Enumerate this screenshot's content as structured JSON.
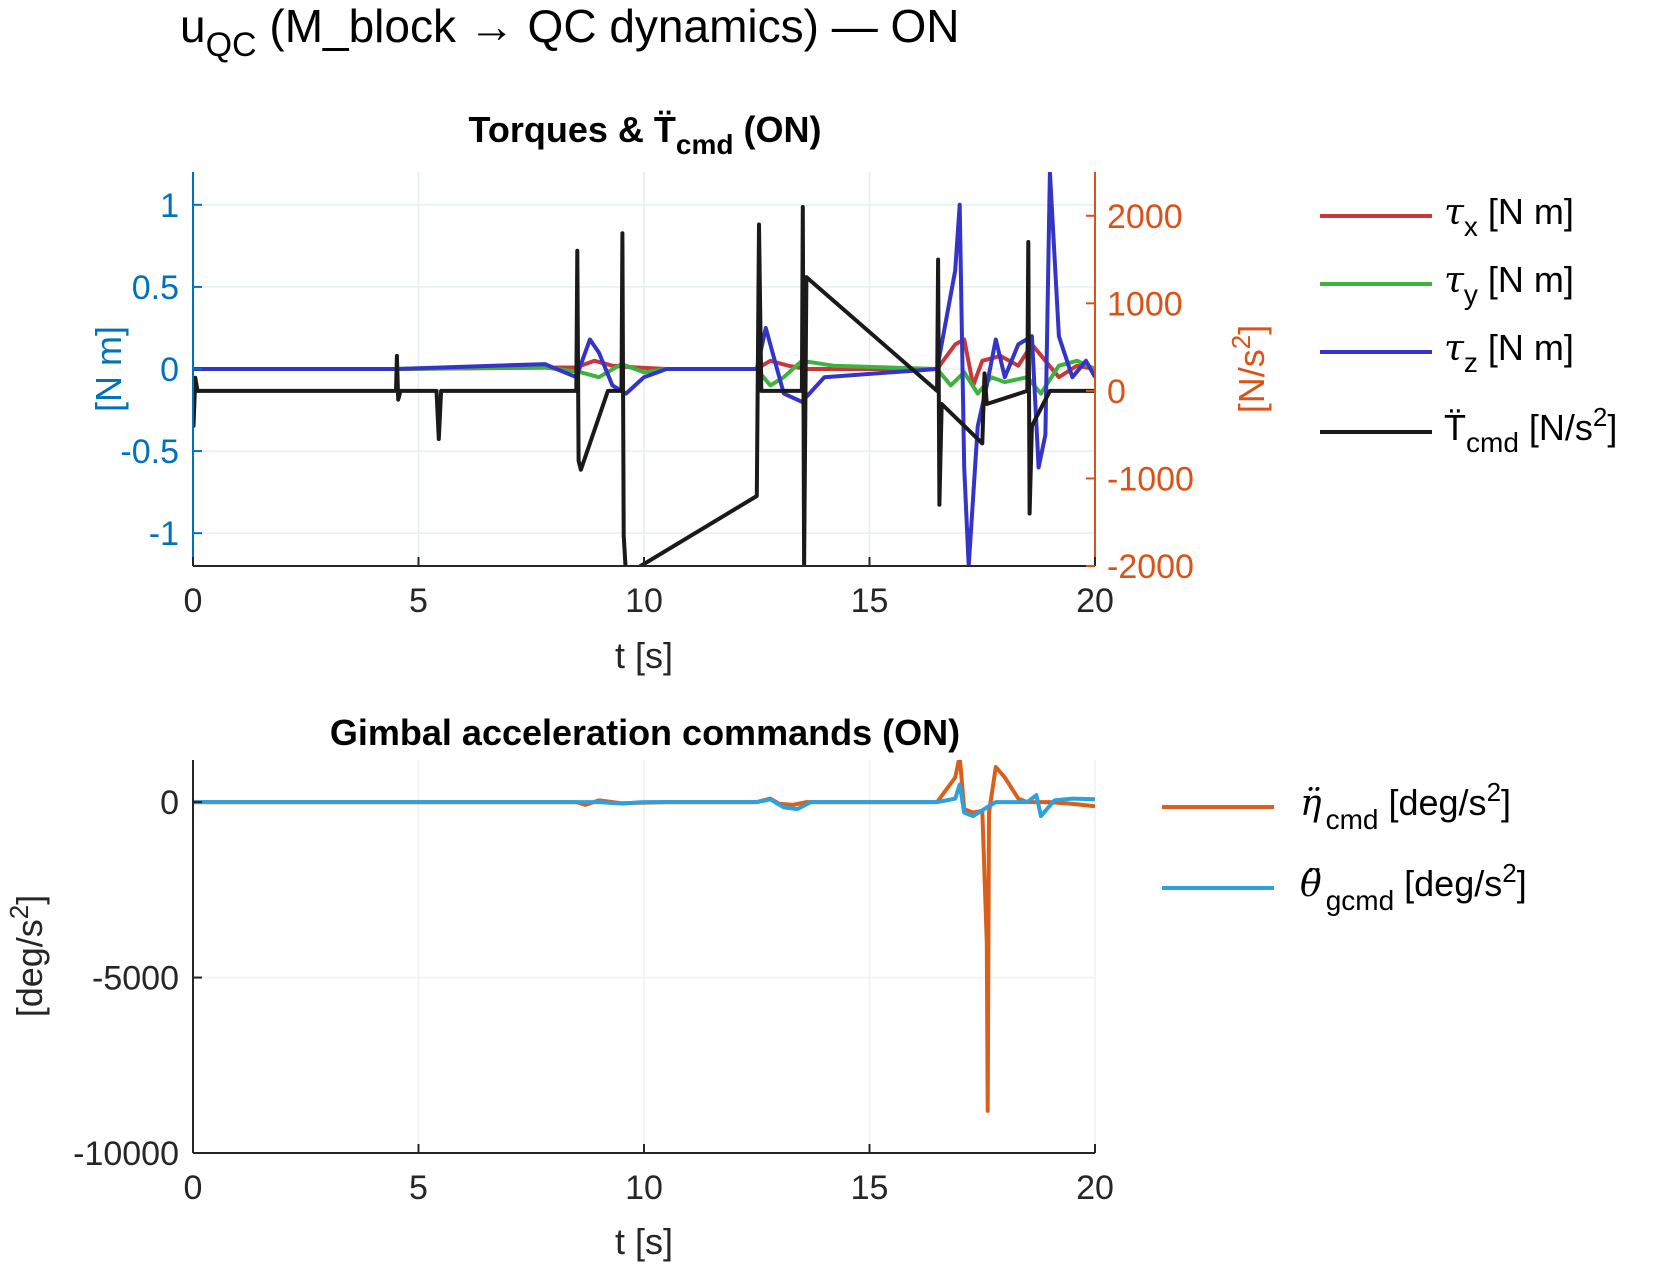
{
  "figure": {
    "suptitle": {
      "base": "u",
      "sub": "QC",
      "rest": " (M_block → QC dynamics) — ON"
    }
  },
  "colors": {
    "tau_x": "#c8383a",
    "tau_y": "#3cb43c",
    "tau_z": "#3434c6",
    "T_cmd": "#1a1a1a",
    "eta": "#d95f1a",
    "theta": "#2ea0dc",
    "left_axis": "#0072bd",
    "right_axis": "#d95319"
  },
  "chart_data": [
    {
      "type": "line",
      "title": {
        "prefix": "Torques & ",
        "sym": "T̈",
        "sub": "cmd",
        "suffix": " (ON)"
      },
      "xlabel": "t [s]",
      "ylabel_left": "[N m]",
      "ylabel_right": {
        "text": "[N/s",
        "sup": "2",
        "end": "]"
      },
      "xlim": [
        0,
        20
      ],
      "ylim_left": [
        -1.2,
        1.2
      ],
      "ylim_right": [
        -2000,
        2500
      ],
      "xticks": [
        0,
        5,
        10,
        15,
        20
      ],
      "xtick_labels": [
        "0",
        "5",
        "10",
        "15",
        "20"
      ],
      "yticks_left": [
        1,
        0.5,
        0,
        -0.5,
        -1
      ],
      "ytick_labels_left": [
        "1",
        "0.5",
        "0",
        "-0.5",
        "-1"
      ],
      "yticks_right": [
        2000,
        1000,
        0,
        -1000,
        -2000
      ],
      "ytick_labels_right": [
        "2000",
        "1000",
        "0",
        "-1000",
        "-2000"
      ],
      "grid": true,
      "legend_position": "outside-right",
      "series": [
        {
          "key": "tau_x",
          "name_sym": "τ",
          "name_sub": "x",
          "name_rest": " [N m]",
          "axis": "left",
          "x": [
            0,
            4.5,
            8.5,
            8.9,
            9.3,
            9.8,
            10.5,
            12.5,
            12.8,
            13.2,
            13.6,
            14.5,
            16.5,
            16.9,
            17.1,
            17.3,
            17.5,
            17.9,
            18.3,
            18.6,
            18.9,
            19.2,
            19.6,
            20
          ],
          "y": [
            0,
            0,
            0.01,
            0.05,
            0.02,
            0.01,
            0,
            0,
            0.05,
            0.02,
            0,
            0,
            0,
            0.15,
            0.18,
            -0.1,
            0.05,
            0.08,
            0.02,
            0.15,
            0.05,
            -0.05,
            0.02,
            0
          ]
        },
        {
          "key": "tau_y",
          "name_sym": "τ",
          "name_sub": "y",
          "name_rest": " [N m]",
          "axis": "left",
          "x": [
            0,
            4.5,
            7.8,
            8.6,
            9.0,
            9.5,
            10.0,
            10.5,
            12.5,
            12.8,
            13.1,
            13.5,
            14.2,
            16.5,
            16.8,
            17.1,
            17.4,
            17.7,
            18.0,
            18.5,
            18.8,
            19.2,
            19.6,
            20
          ],
          "y": [
            0,
            0,
            0.01,
            -0.02,
            -0.05,
            0.03,
            -0.02,
            0,
            0,
            -0.1,
            -0.05,
            0.05,
            0.02,
            0,
            -0.1,
            -0.02,
            -0.15,
            -0.05,
            -0.08,
            -0.05,
            -0.15,
            0.02,
            0.05,
            0
          ]
        },
        {
          "key": "tau_z",
          "name_sym": "τ",
          "name_sub": "z",
          "name_rest": " [N m]",
          "axis": "left",
          "x": [
            0,
            4.5,
            7.8,
            8.5,
            8.8,
            9.0,
            9.3,
            9.6,
            10.0,
            10.5,
            12.5,
            12.7,
            12.9,
            13.1,
            13.5,
            14.0,
            16.5,
            16.9,
            17.0,
            17.1,
            17.2,
            17.4,
            17.6,
            17.8,
            18.0,
            18.3,
            18.6,
            18.75,
            18.9,
            19.0,
            19.2,
            19.5,
            19.8,
            20
          ],
          "y": [
            0,
            0,
            0.03,
            -0.05,
            0.18,
            0.1,
            -0.1,
            -0.15,
            -0.05,
            0,
            0,
            0.25,
            0.05,
            -0.15,
            -0.2,
            -0.05,
            0,
            0.6,
            1.0,
            -0.6,
            -1.2,
            -0.35,
            -0.1,
            0.18,
            -0.05,
            0.15,
            0.2,
            -0.6,
            -0.4,
            1.2,
            0.2,
            -0.05,
            0.05,
            -0.05
          ]
        },
        {
          "key": "T_cmd",
          "name_sym": "T̈",
          "name_sub": "cmd",
          "name_rest": " [N/s",
          "name_sup": "2",
          "name_end": "]",
          "axis": "right",
          "x": [
            0,
            0.01,
            0.05,
            0.1,
            4.5,
            4.52,
            4.55,
            4.6,
            5.4,
            5.45,
            5.5,
            8.5,
            8.52,
            8.55,
            8.6,
            9.2,
            9.5,
            9.52,
            9.55,
            9.6,
            12.5,
            12.55,
            12.6,
            13.2,
            13.5,
            13.52,
            13.55,
            13.6,
            16.5,
            16.52,
            16.55,
            16.6,
            17.5,
            17.55,
            17.6,
            18.5,
            18.52,
            18.55,
            18.6,
            19.0,
            19.5,
            20
          ],
          "y": [
            0,
            -400,
            150,
            0,
            0,
            400,
            -100,
            0,
            0,
            -550,
            0,
            0,
            1600,
            -800,
            -900,
            0,
            0,
            1800,
            -1650,
            -2100,
            -1200,
            1900,
            0,
            0,
            0,
            2100,
            -2000,
            1300,
            0,
            1500,
            -1300,
            -150,
            -600,
            200,
            -150,
            0,
            1700,
            -1400,
            -400,
            0,
            0,
            0
          ]
        }
      ]
    },
    {
      "type": "line",
      "title": "Gimbal acceleration commands (ON)",
      "xlabel": "t [s]",
      "ylabel": {
        "text": "[deg/s",
        "sup": "2",
        "end": "]"
      },
      "xlim": [
        0,
        20
      ],
      "ylim": [
        -10000,
        1200
      ],
      "xticks": [
        0,
        5,
        10,
        15,
        20
      ],
      "xtick_labels": [
        "0",
        "5",
        "10",
        "15",
        "20"
      ],
      "yticks": [
        0,
        -5000,
        -10000
      ],
      "ytick_labels": [
        "0",
        "-5000",
        "-10000"
      ],
      "grid": true,
      "legend_position": "outside-right",
      "series": [
        {
          "key": "eta",
          "name_sym": "η̈",
          "name_sub": "cmd",
          "name_rest": " [deg/s",
          "name_sup": "2",
          "name_end": "]",
          "x": [
            0,
            4.5,
            8.5,
            8.7,
            9.0,
            9.5,
            10.5,
            12.5,
            12.8,
            13.0,
            13.3,
            13.6,
            14.5,
            16.5,
            16.9,
            17.0,
            17.1,
            17.3,
            17.5,
            17.6,
            17.62,
            17.65,
            17.8,
            18.0,
            18.3,
            18.5,
            19.0,
            19.5,
            20
          ],
          "y": [
            0,
            0,
            0,
            -80,
            50,
            -30,
            0,
            0,
            100,
            -50,
            -80,
            0,
            0,
            0,
            700,
            1300,
            -200,
            -300,
            -250,
            -4000,
            -8800,
            -300,
            1000,
            700,
            100,
            0,
            0,
            -50,
            -120
          ]
        },
        {
          "key": "theta",
          "name_sym": "θ̈",
          "name_sub": "gcmd",
          "name_rest": " [deg/s",
          "name_sup": "2",
          "name_end": "]",
          "x": [
            0,
            4.5,
            9.0,
            9.5,
            10.0,
            12.5,
            12.8,
            13.1,
            13.4,
            13.7,
            14.5,
            16.5,
            16.9,
            17.0,
            17.1,
            17.3,
            17.6,
            17.8,
            18.5,
            18.7,
            18.8,
            19.1,
            19.5,
            20
          ],
          "y": [
            0,
            0,
            0,
            -40,
            0,
            0,
            80,
            -150,
            -200,
            0,
            0,
            0,
            100,
            500,
            -300,
            -400,
            -150,
            0,
            0,
            200,
            -400,
            50,
            100,
            80
          ]
        }
      ]
    }
  ]
}
